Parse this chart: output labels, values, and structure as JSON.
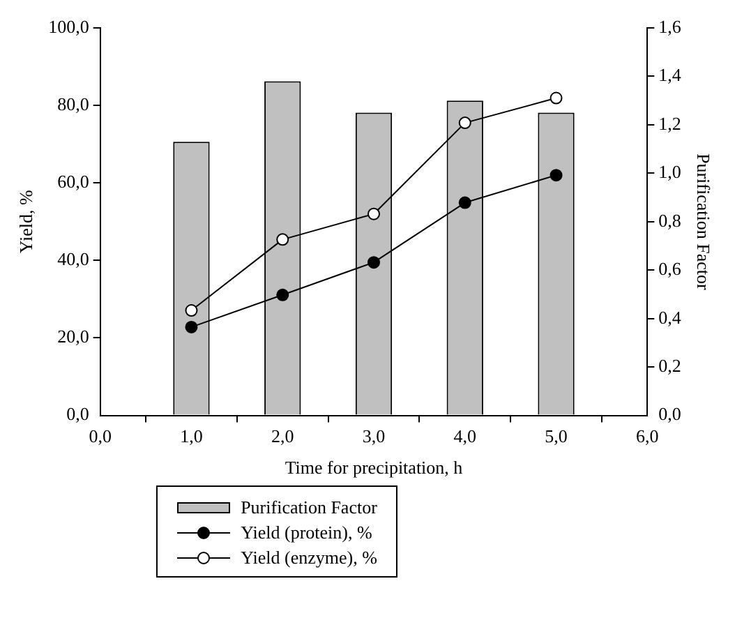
{
  "chart_data": {
    "type": "bar",
    "xlabel": "Time for precipitation, h",
    "ylabel": "Yield, %",
    "y2label": "Purification Factor",
    "x": [
      1,
      2,
      3,
      4,
      5
    ],
    "xlim": [
      0,
      6
    ],
    "xticks": [
      {
        "value": 0,
        "label": "0,0"
      },
      {
        "value": 1,
        "label": "1,0"
      },
      {
        "value": 2,
        "label": "2,0"
      },
      {
        "value": 3,
        "label": "3,0"
      },
      {
        "value": 4,
        "label": "4,0"
      },
      {
        "value": 5,
        "label": "5,0"
      },
      {
        "value": 6,
        "label": "6,0"
      }
    ],
    "ylim": [
      0,
      100
    ],
    "yticks": [
      {
        "value": 0,
        "label": "0,0"
      },
      {
        "value": 20,
        "label": "20,0"
      },
      {
        "value": 40,
        "label": "40,0"
      },
      {
        "value": 60,
        "label": "60,0"
      },
      {
        "value": 80,
        "label": "80,0"
      },
      {
        "value": 100,
        "label": "100,0"
      }
    ],
    "y2lim": [
      0,
      1.6
    ],
    "y2ticks": [
      {
        "value": 0,
        "label": "0,0"
      },
      {
        "value": 0.2,
        "label": "0,2"
      },
      {
        "value": 0.4,
        "label": "0,4"
      },
      {
        "value": 0.6,
        "label": "0,6"
      },
      {
        "value": 0.8,
        "label": "0,8"
      },
      {
        "value": 1,
        "label": "1,0"
      },
      {
        "value": 1.2,
        "label": "1,2"
      },
      {
        "value": 1.4,
        "label": "1,4"
      },
      {
        "value": 1.6,
        "label": "1,6"
      }
    ],
    "grid": false,
    "legend": "bottom",
    "marker": "circle",
    "series": [
      {
        "name": "Purification Factor",
        "axis": "y2",
        "color": "#c0c0c0",
        "values": [
          1.13,
          1.38,
          1.25,
          1.3,
          1.25
        ]
      },
      {
        "name": "Yield (protein), %",
        "type": "line",
        "color": "#000000",
        "values": [
          22.8,
          31.1,
          39.5,
          54.9,
          62.0
        ]
      },
      {
        "name": "Yield (enzyme), %",
        "type": "line",
        "color": "#ffffff",
        "values": [
          27.1,
          45.4,
          52.0,
          75.5,
          81.9
        ]
      }
    ]
  }
}
